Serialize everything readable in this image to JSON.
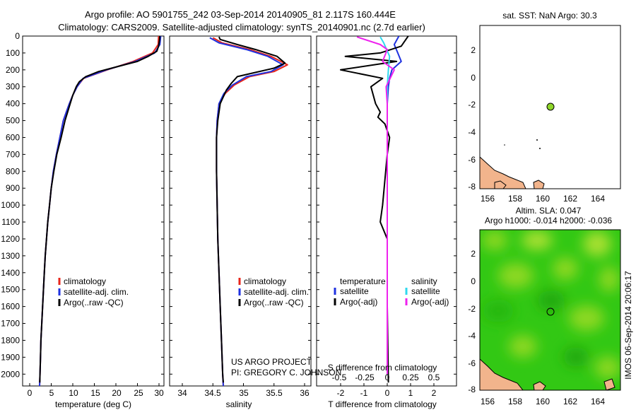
{
  "header": {
    "line1": "Argo profile: AO 5901755_242 03-Sep-2014 20140905_81 2.117S 160.444E",
    "line2": "Climatology: CARS2009. Satellite-adjusted climatology: synTS_20140901.nc (2.7d earlier)"
  },
  "depth_ticks": [
    "0",
    "100",
    "200",
    "300",
    "400",
    "500",
    "600",
    "700",
    "800",
    "900",
    "1000",
    "1100",
    "1200",
    "1300",
    "1400",
    "1500",
    "1600",
    "1700",
    "1800",
    "1900",
    "2000"
  ],
  "colors": {
    "climatology": "#e8261b",
    "satellite": "#1f32e0",
    "argo": "#000000",
    "sat_sal": "#2fd8ee",
    "argo_sal": "#ee22ee",
    "map_land": "#f2b48c",
    "map_green": "#32c814",
    "argo_dot": "#8fd62a"
  },
  "temperature_panel": {
    "xlabel": "temperature (deg C)",
    "xticks": [
      "0",
      "5",
      "10",
      "15",
      "20",
      "25",
      "30"
    ],
    "legend": [
      "climatology",
      "satellite-adj. clim.",
      "Argo(..raw -QC)"
    ]
  },
  "salinity_panel": {
    "xlabel": "salinity",
    "xticks": [
      "34",
      "34.5",
      "35",
      "35.5",
      "36"
    ],
    "legend": [
      "climatology",
      "satellite-adj. clim.",
      "Argo(..raw -QC)"
    ],
    "credit1": "US ARGO PROJECT",
    "credit2": "PI: GREGORY C. JOHNSON"
  },
  "diff_panel": {
    "xlabel": "T difference from climatology",
    "top_label": "S difference from climatology",
    "s_ticks": [
      "-0.5",
      "-0.25",
      "0",
      "0.25",
      "0.5"
    ],
    "t_ticks": [
      "-2",
      "-1",
      "0",
      "1",
      "2"
    ],
    "legend_temp_title": "temperature",
    "legend_sal_title": "salinity",
    "legend_temp": [
      "satellite",
      "Argo(-adj)"
    ],
    "legend_sal": [
      "satellite",
      "Argo(-adj)"
    ]
  },
  "sst_map": {
    "title": "sat. SST: NaN Argo: 30.3",
    "xticks": [
      "156",
      "158",
      "160",
      "162",
      "164"
    ],
    "yticks": [
      "2",
      "0",
      "-2",
      "-4",
      "-6",
      "-8"
    ]
  },
  "sla_map": {
    "title1": "Altim. SLA: 0.047",
    "title2": "Argo h1000: -0.014 h2000: -0.036",
    "xticks": [
      "156",
      "158",
      "160",
      "162",
      "164"
    ],
    "yticks": [
      "2",
      "0",
      "-2",
      "-4",
      "-6",
      "-8"
    ],
    "side_label": "IMOS 06-Sep-2014 20:06:17"
  },
  "chart_data": [
    {
      "type": "line",
      "title": "",
      "xlabel": "temperature (deg C)",
      "ylabel": "",
      "xlim": [
        -1,
        31.5
      ],
      "ylim": [
        2070,
        0
      ],
      "series": [
        {
          "name": "climatology",
          "points": [
            [
              29.9,
              0
            ],
            [
              29.8,
              50
            ],
            [
              28.5,
              100
            ],
            [
              24,
              150
            ],
            [
              18,
              200
            ],
            [
              12.5,
              250
            ],
            [
              11,
              300
            ],
            [
              10,
              350
            ],
            [
              9.2,
              400
            ],
            [
              8.5,
              450
            ],
            [
              7.8,
              500
            ],
            [
              7,
              600
            ],
            [
              6.2,
              700
            ],
            [
              5.5,
              800
            ],
            [
              5,
              900
            ],
            [
              4.6,
              1000
            ],
            [
              4.2,
              1100
            ],
            [
              3.9,
              1200
            ],
            [
              3.6,
              1300
            ],
            [
              3.4,
              1400
            ],
            [
              3.2,
              1500
            ],
            [
              3,
              1600
            ],
            [
              2.8,
              1700
            ],
            [
              2.6,
              1800
            ],
            [
              2.5,
              1900
            ],
            [
              2.4,
              2000
            ],
            [
              2.3,
              2070
            ]
          ]
        },
        {
          "name": "satellite-adj. clim.",
          "points": [
            [
              30.4,
              0
            ],
            [
              30.2,
              50
            ],
            [
              29,
              100
            ],
            [
              24.5,
              150
            ],
            [
              17.8,
              200
            ],
            [
              12.4,
              250
            ],
            [
              11,
              300
            ],
            [
              10,
              350
            ],
            [
              9.2,
              400
            ],
            [
              8.5,
              450
            ],
            [
              7.8,
              500
            ],
            [
              7,
              600
            ],
            [
              6.2,
              700
            ],
            [
              5.5,
              800
            ],
            [
              5,
              900
            ],
            [
              4.6,
              1000
            ],
            [
              4.2,
              1100
            ],
            [
              3.9,
              1200
            ],
            [
              3.6,
              1300
            ],
            [
              3.4,
              1400
            ],
            [
              3.2,
              1500
            ],
            [
              3,
              1600
            ],
            [
              2.8,
              1700
            ],
            [
              2.6,
              1800
            ],
            [
              2.5,
              1900
            ],
            [
              2.4,
              2000
            ],
            [
              2.3,
              2070
            ]
          ]
        },
        {
          "name": "Argo(..raw -QC)",
          "points": [
            [
              30.2,
              0
            ],
            [
              30.1,
              30
            ],
            [
              29.9,
              60
            ],
            [
              29.5,
              90
            ],
            [
              27.5,
              120
            ],
            [
              25,
              150
            ],
            [
              20.5,
              180
            ],
            [
              16,
              210
            ],
            [
              13,
              240
            ],
            [
              11.5,
              270
            ],
            [
              10.8,
              300
            ],
            [
              10,
              350
            ],
            [
              9.4,
              400
            ],
            [
              8.8,
              450
            ],
            [
              8.2,
              500
            ],
            [
              7.3,
              600
            ],
            [
              6.3,
              700
            ],
            [
              5.6,
              800
            ],
            [
              5,
              900
            ],
            [
              4.6,
              1000
            ],
            [
              4.2,
              1100
            ],
            [
              3.9,
              1200
            ],
            [
              3.6,
              1300
            ],
            [
              3.4,
              1400
            ],
            [
              3.2,
              1500
            ],
            [
              3,
              1600
            ],
            [
              2.8,
              1700
            ],
            [
              2.6,
              1800
            ],
            [
              2.5,
              1900
            ],
            [
              2.4,
              2000
            ],
            [
              2.35,
              2050
            ]
          ]
        }
      ]
    },
    {
      "type": "line",
      "title": "",
      "xlabel": "salinity",
      "ylabel": "",
      "xlim": [
        33.8,
        36.1
      ],
      "ylim": [
        2070,
        0
      ],
      "series": [
        {
          "name": "climatology",
          "points": [
            [
              34.5,
              10
            ],
            [
              34.65,
              40
            ],
            [
              35.1,
              80
            ],
            [
              35.45,
              120
            ],
            [
              35.72,
              170
            ],
            [
              35.5,
              210
            ],
            [
              35.1,
              240
            ],
            [
              34.85,
              290
            ],
            [
              34.7,
              340
            ],
            [
              34.6,
              400
            ],
            [
              34.57,
              500
            ],
            [
              34.56,
              600
            ],
            [
              34.56,
              800
            ],
            [
              34.57,
              1000
            ],
            [
              34.58,
              1200
            ],
            [
              34.6,
              1400
            ],
            [
              34.62,
              1600
            ],
            [
              34.64,
              1800
            ],
            [
              34.66,
              2000
            ],
            [
              34.67,
              2070
            ]
          ]
        },
        {
          "name": "satellite-adj. clim.",
          "points": [
            [
              34.45,
              10
            ],
            [
              34.6,
              40
            ],
            [
              35.05,
              80
            ],
            [
              35.4,
              120
            ],
            [
              35.65,
              170
            ],
            [
              35.45,
              210
            ],
            [
              35.05,
              240
            ],
            [
              34.82,
              290
            ],
            [
              34.68,
              340
            ],
            [
              34.6,
              400
            ],
            [
              34.57,
              500
            ],
            [
              34.56,
              600
            ],
            [
              34.56,
              800
            ],
            [
              34.57,
              1000
            ],
            [
              34.58,
              1200
            ],
            [
              34.6,
              1400
            ],
            [
              34.62,
              1600
            ],
            [
              34.64,
              1800
            ],
            [
              34.66,
              2000
            ],
            [
              34.67,
              2070
            ]
          ]
        },
        {
          "name": "Argo(..raw -QC)",
          "points": [
            [
              34.6,
              5
            ],
            [
              34.62,
              20
            ],
            [
              34.9,
              50
            ],
            [
              35.2,
              80
            ],
            [
              35.55,
              120
            ],
            [
              35.68,
              160
            ],
            [
              35.5,
              190
            ],
            [
              35.2,
              215
            ],
            [
              34.9,
              240
            ],
            [
              34.8,
              280
            ],
            [
              34.72,
              320
            ],
            [
              34.62,
              400
            ],
            [
              34.58,
              500
            ],
            [
              34.56,
              600
            ],
            [
              34.56,
              800
            ],
            [
              34.57,
              1000
            ],
            [
              34.58,
              1200
            ],
            [
              34.6,
              1400
            ],
            [
              34.62,
              1600
            ],
            [
              34.64,
              1800
            ],
            [
              34.66,
              2000
            ],
            [
              34.67,
              2050
            ]
          ]
        }
      ]
    },
    {
      "type": "line",
      "title": "",
      "xlabel": "T difference from climatology",
      "ylabel": "",
      "xlim": [
        -2.5,
        2.3
      ],
      "ylim": [
        2070,
        0
      ],
      "series": [
        {
          "name": "temperature satellite",
          "points": [
            [
              0.5,
              0
            ],
            [
              0.3,
              50
            ],
            [
              0.45,
              100
            ],
            [
              0.6,
              150
            ],
            [
              0.2,
              200
            ],
            [
              0.1,
              250
            ],
            [
              0.05,
              300
            ],
            [
              0,
              400
            ],
            [
              0,
              1000
            ],
            [
              0,
              2000
            ]
          ]
        },
        {
          "name": "temperature Argo(-adj)",
          "points": [
            [
              0.9,
              0
            ],
            [
              0.6,
              60
            ],
            [
              -0.3,
              100
            ],
            [
              -1.8,
              120
            ],
            [
              0.4,
              150
            ],
            [
              -2,
              200
            ],
            [
              -0.2,
              250
            ],
            [
              -0.7,
              300
            ],
            [
              -0.5,
              400
            ],
            [
              -0.3,
              450
            ],
            [
              -0.4,
              480
            ],
            [
              -0.1,
              520
            ],
            [
              0.1,
              600
            ],
            [
              0,
              700
            ],
            [
              -0.2,
              1000
            ],
            [
              -0.3,
              1100
            ],
            [
              0,
              1200
            ],
            [
              0,
              1600
            ],
            [
              0.05,
              2050
            ]
          ]
        },
        {
          "name": "salinity satellite",
          "points": [
            [
              -0.3,
              5
            ],
            [
              -0.15,
              40
            ],
            [
              0.1,
              120
            ],
            [
              0.05,
              200
            ],
            [
              0,
              300
            ],
            [
              0,
              2000
            ]
          ]
        },
        {
          "name": "salinity Argo(-adj)",
          "points": [
            [
              -1.3,
              5
            ],
            [
              -0.3,
              50
            ],
            [
              0,
              80
            ],
            [
              -0.2,
              150
            ],
            [
              0.3,
              200
            ],
            [
              -0.05,
              300
            ],
            [
              0,
              400
            ],
            [
              0,
              2000
            ]
          ]
        }
      ]
    }
  ]
}
